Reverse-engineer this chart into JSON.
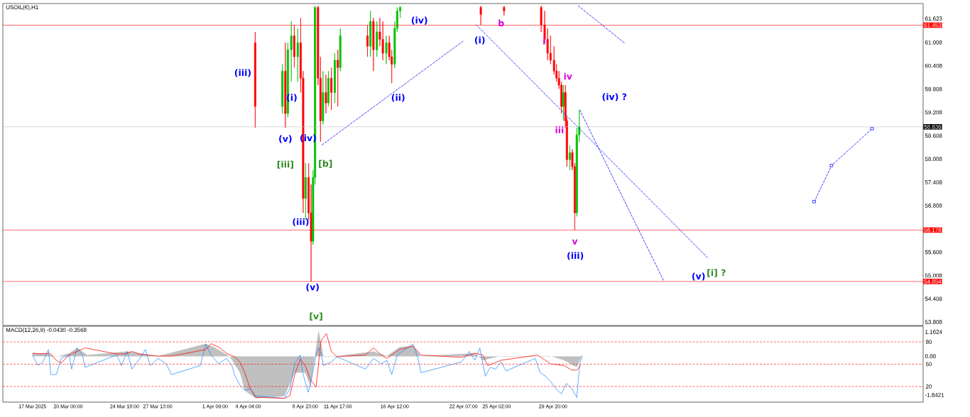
{
  "chart_data": [
    {
      "type": "candlestick",
      "title": "USOIL(€),H1",
      "x": [
        "2025-04-04T18:00",
        "2025-04-07T01:00",
        "2025-04-07T07:00",
        "2025-04-07T12:00",
        "2025-04-07T19:00",
        "2025-04-08T01:00",
        "2025-04-08T08:00",
        "2025-04-08T14:00",
        "2025-04-08T19:00",
        "2025-04-09T00:00",
        "2025-04-09T06:00",
        "2025-04-09T11:00",
        "2025-04-09T15:00",
        "2025-04-09T19:00",
        "2025-04-10T01:00",
        "2025-04-10T06:00",
        "2025-04-10T11:00",
        "2025-04-10T17:00",
        "2025-04-10T22:00",
        "2025-04-11T04:00",
        "2025-04-11T11:00",
        "2025-04-11T17:00",
        "2025-04-11T22:00",
        "2025-04-14T05:00",
        "2025-04-14T11:00",
        "2025-04-14T17:00",
        "2025-04-15T00:00",
        "2025-04-15T06:00",
        "2025-04-15T12:00",
        "2025-04-15T19:00",
        "2025-04-16T01:00",
        "2025-04-16T06:00",
        "2025-04-16T12:00",
        "2025-04-16T17:00",
        "2025-04-16T23:00",
        "2025-04-23T18:00",
        "2025-04-25T17:00",
        "2025-04-28T20:00",
        "2025-04-29T03:00",
        "2025-04-29T09:00",
        "2025-04-29T15:00",
        "2025-04-29T22:00",
        "2025-04-30T03:00",
        "2025-04-30T08:00",
        "2025-04-30T13:00",
        "2025-04-30T17:00",
        "2025-04-30T21:00",
        "2025-05-01T00:00",
        "2025-05-01T06:00",
        "2025-05-01T11:00",
        "2025-05-01T16:00",
        "2025-05-01T20:00",
        "2025-05-02T01:00"
      ],
      "ohlc": [
        [
          61.0,
          61.28,
          58.81,
          59.36
        ],
        [
          59.36,
          60.45,
          59.18,
          60.27
        ],
        [
          60.27,
          61.0,
          58.81,
          59.18
        ],
        [
          59.18,
          61.0,
          59.08,
          60.82
        ],
        [
          60.82,
          61.55,
          60.0,
          61.18
        ],
        [
          61.18,
          61.46,
          60.36,
          60.64
        ],
        [
          60.64,
          61.37,
          60.0,
          61.0
        ],
        [
          61.0,
          61.64,
          59.72,
          60.09
        ],
        [
          60.09,
          60.27,
          56.62,
          56.99
        ],
        [
          56.99,
          57.9,
          56.44,
          57.53
        ],
        [
          57.53,
          57.9,
          56.44,
          56.62
        ],
        [
          56.62,
          57.35,
          54.85,
          55.89
        ],
        [
          55.89,
          57.72,
          55.8,
          57.53
        ],
        [
          57.53,
          61.95,
          57.35,
          61.91
        ],
        [
          61.91,
          61.95,
          59.91,
          60.09
        ],
        [
          60.09,
          60.64,
          58.45,
          58.99
        ],
        [
          58.99,
          60.27,
          58.9,
          59.72
        ],
        [
          59.72,
          60.18,
          59.18,
          59.45
        ],
        [
          59.45,
          60.27,
          59.36,
          60.09
        ],
        [
          60.09,
          60.36,
          59.27,
          59.72
        ],
        [
          59.72,
          60.73,
          59.45,
          60.55
        ],
        [
          60.55,
          60.82,
          59.36,
          60.36
        ],
        [
          60.36,
          61.37,
          60.27,
          61.18
        ],
        [
          61.18,
          61.46,
          60.64,
          60.91
        ],
        [
          60.91,
          61.82,
          60.64,
          61.55
        ],
        [
          61.55,
          61.64,
          60.27,
          60.82
        ],
        [
          60.82,
          61.55,
          60.64,
          61.28
        ],
        [
          61.28,
          61.64,
          60.91,
          61.09
        ],
        [
          61.09,
          61.55,
          60.55,
          60.73
        ],
        [
          60.73,
          61.18,
          60.45,
          61.0
        ],
        [
          61.0,
          61.18,
          60.55,
          60.64
        ],
        [
          60.64,
          60.82,
          59.96,
          60.45
        ],
        [
          60.45,
          61.55,
          60.36,
          61.37
        ],
        [
          61.37,
          61.91,
          61.28,
          61.82
        ],
        [
          61.82,
          61.95,
          61.64,
          61.91
        ],
        [
          61.91,
          61.95,
          61.46,
          61.73
        ],
        [
          61.91,
          61.95,
          61.7,
          61.82
        ],
        [
          61.91,
          61.95,
          61.28,
          61.46
        ],
        [
          61.46,
          61.82,
          61.0,
          61.09
        ],
        [
          61.09,
          61.37,
          60.55,
          60.73
        ],
        [
          60.73,
          61.18,
          60.45,
          60.55
        ],
        [
          60.55,
          60.91,
          60.18,
          60.27
        ],
        [
          60.27,
          60.45,
          60.0,
          60.09
        ],
        [
          60.09,
          60.27,
          59.81,
          59.91
        ],
        [
          59.91,
          60.0,
          59.18,
          59.36
        ],
        [
          59.36,
          59.91,
          58.99,
          59.72
        ],
        [
          59.72,
          59.91,
          58.81,
          58.99
        ],
        [
          58.99,
          59.08,
          57.81,
          57.99
        ],
        [
          57.99,
          58.35,
          57.72,
          58.17
        ],
        [
          58.17,
          58.26,
          57.72,
          57.81
        ],
        [
          57.81,
          57.9,
          56.18,
          56.62
        ],
        [
          56.62,
          58.81,
          56.53,
          58.63
        ],
        [
          58.63,
          59.27,
          58.45,
          58.84
        ]
      ],
      "series": [
        {
          "type": "line",
          "color": "#0000ff",
          "line_style": "dashed",
          "x": [
            "2025-04-10T09:00",
            "2025-04-22T06:00"
          ],
          "values": [
            58.37,
            61.04
          ]
        },
        {
          "type": "line",
          "color": "#0000ff",
          "line_style": "dashed",
          "x": [
            "2025-04-23T09:00",
            "2025-05-12T20:00"
          ],
          "values": [
            61.46,
            55.47
          ]
        },
        {
          "type": "line",
          "color": "#0000ff",
          "line_style": "dashed",
          "x": [
            "2025-05-01T23:00",
            "2025-05-05T20:00"
          ],
          "values": [
            61.95,
            61.0
          ]
        },
        {
          "type": "line",
          "color": "#0000ff",
          "line_style": "dashed",
          "x": [
            "2025-05-02T02:00",
            "2025-05-09T03:00"
          ],
          "values": [
            59.27,
            54.89
          ]
        },
        {
          "type": "line",
          "color": "#0000ff",
          "line_style": "dashed",
          "marker": "square",
          "x": [
            "2025-05-21T20:00",
            "2025-05-23T07:00",
            "2025-05-26T17:00"
          ],
          "values": [
            56.91,
            57.84,
            58.79
          ]
        }
      ],
      "xlim": [
        "2025-03-14T12:00",
        "2025-05-31T00:00"
      ],
      "ylim": [
        53.72,
        62.01
      ],
      "tick_labels": "y",
      "yticks": [
        61.623,
        61.008,
        60.408,
        59.808,
        59.208,
        58.608,
        58.008,
        57.408,
        56.808,
        55.608,
        55.008,
        54.408,
        53.808
      ],
      "ref_lines": [
        {
          "axis": "y",
          "value": 61.453,
          "label": "61.453",
          "color": "#ff0000"
        },
        {
          "axis": "y",
          "value": 58.836,
          "label": "58.836",
          "color": "#c0c0c0"
        },
        {
          "axis": "y",
          "value": 56.178,
          "label": "56.178",
          "color": "#ff0000"
        },
        {
          "axis": "y",
          "value": 54.854,
          "label": "54.854",
          "color": "#ff0000"
        }
      ],
      "annotations": [
        "(iii)",
        "(i)",
        "(v)",
        "(iv)",
        "[iii]",
        "[b]",
        "(iii)",
        "(v)",
        "[v]",
        "(ii)",
        "(iv)",
        "(i)",
        "b",
        "i",
        "iv",
        "(iv) ?",
        "iii",
        "v",
        "(iii)",
        "(v)",
        "[i] ?"
      ]
    },
    {
      "type": "line",
      "title": "MACD(12,26,9) -0.0430 -0.3568",
      "xlim": [
        "2025-03-14T12:00",
        "2025-05-31T00:00"
      ],
      "ylim": [
        -2.18,
        1.43
      ],
      "y2lim": [
        -1,
        101
      ],
      "xticks": [
        {
          "value": "2025-03-17T00:00",
          "label": "17 Mar 2025"
        },
        {
          "value": "2025-03-20T00:00",
          "label": "20 Mar 00:00"
        },
        {
          "value": "2025-03-24T18:00",
          "label": "24 Mar 18:00"
        },
        {
          "value": "2025-03-27T13:00",
          "label": "27 Mar 13:00"
        },
        {
          "value": "2025-04-01T09:00",
          "label": "1 Apr 09:00"
        },
        {
          "value": "2025-04-04T04:00",
          "label": "4 Apr 04:00"
        },
        {
          "value": "2025-04-08T23:00",
          "label": "8 Apr 23:00"
        },
        {
          "value": "2025-04-11T17:00",
          "label": "11 Apr 17:00"
        },
        {
          "value": "2025-04-16T12:00",
          "label": "16 Apr 12:00"
        },
        {
          "value": "2025-04-22T07:00",
          "label": "22 Apr 07:00"
        },
        {
          "value": "2025-04-25T02:00",
          "label": "25 Apr 02:00"
        },
        {
          "value": "2025-04-29T20:00",
          "label": "29 Apr 20:00"
        }
      ],
      "yticks": [
        1.1624,
        {
          "value": 0,
          "label": "0.00"
        },
        -1.8421
      ],
      "y2ticks": [
        80,
        50,
        20
      ],
      "ref_lines": [
        {
          "axis": "y2",
          "value": 80,
          "color": "#ff0000",
          "line_style": "dashed"
        },
        {
          "axis": "y2",
          "value": 50,
          "color": "#ff0000",
          "line_style": "dashed"
        },
        {
          "axis": "y2",
          "value": 20,
          "color": "#ff0000",
          "line_style": "dashed"
        }
      ],
      "series": [
        {
          "type": "area",
          "color": "#c0c0c0",
          "x": [
            "2025-03-17T00:00",
            "2025-03-18T03:00",
            "2025-03-19T00:00",
            "2025-03-20T02:00",
            "2025-03-20T18:00",
            "2025-03-21T15:00",
            "2025-03-24T23:00",
            "2025-03-27T14:00",
            "2025-03-31T14:00",
            "2025-04-01T06:00",
            "2025-04-02T14:00",
            "2025-04-03T11:00",
            "2025-04-03T21:00",
            "2025-04-04T19:00",
            "2025-04-07T05:00",
            "2025-04-08T02:00",
            "2025-04-08T23:00",
            "2025-04-09T10:00",
            "2025-04-10T02:00",
            "2025-04-10T12:00",
            "2025-04-11T15:00",
            "2025-04-14T17:00",
            "2025-04-15T20:00",
            "2025-04-16T22:00",
            "2025-04-18T01:00",
            "2025-04-18T17:00",
            "2025-04-23T06:00",
            "2025-04-23T22:00",
            "2025-04-25T11:00",
            "2025-04-29T15:00",
            "2025-04-30T18:00",
            "2025-05-01T20:00",
            "2025-05-02T07:00"
          ],
          "values": [
            0.15,
            0.15,
            -0.02,
            0.15,
            0.4,
            0.06,
            0.23,
            0.01,
            0.6,
            0.44,
            0.01,
            -0.78,
            -1.63,
            -2.0,
            -1.9,
            -0.78,
            -0.78,
            -1.46,
            1.25,
            0.01,
            0.01,
            0.23,
            0.01,
            0.44,
            0.49,
            0.01,
            0.15,
            -0.19,
            0.01,
            0.01,
            -0.19,
            -0.53,
            0.06
          ]
        },
        {
          "type": "line",
          "color": "#1e90ff",
          "x": [
            "2025-03-17T00:00",
            "2025-03-17T11:00",
            "2025-03-17T21:00",
            "2025-03-18T08:00",
            "2025-03-18T13:00",
            "2025-03-19T00:00",
            "2025-03-19T10:00",
            "2025-03-20T02:00",
            "2025-03-20T07:00",
            "2025-03-20T18:00",
            "2025-03-21T05:00",
            "2025-03-21T10:00",
            "2025-03-24T02:00",
            "2025-03-24T12:00",
            "2025-03-24T23:00",
            "2025-03-25T09:00",
            "2025-03-26T01:00",
            "2025-03-26T12:00",
            "2025-03-26T22:00",
            "2025-03-27T14:00",
            "2025-03-28T06:00",
            "2025-03-28T17:00",
            "2025-03-31T03:00",
            "2025-03-31T14:00",
            "2025-04-01T01:00",
            "2025-04-01T16:00",
            "2025-04-02T08:00",
            "2025-04-02T19:00",
            "2025-04-03T00:00",
            "2025-04-03T11:00",
            "2025-04-03T21:00",
            "2025-04-04T08:00",
            "2025-04-04T19:00",
            "2025-04-07T05:00",
            "2025-04-07T16:00",
            "2025-04-08T02:00",
            "2025-04-08T13:00",
            "2025-04-08T18:00",
            "2025-04-09T05:00",
            "2025-04-09T10:00",
            "2025-04-09T21:00",
            "2025-04-10T02:00",
            "2025-04-10T07:00",
            "2025-04-10T12:00",
            "2025-04-11T04:00",
            "2025-04-11T15:00",
            "2025-04-14T01:00",
            "2025-04-14T17:00",
            "2025-04-15T09:00",
            "2025-04-15T20:00",
            "2025-04-16T06:00",
            "2025-04-16T17:00",
            "2025-04-17T14:00",
            "2025-04-18T01:00",
            "2025-04-18T11:00",
            "2025-04-18T17:00",
            "2025-04-22T03:00",
            "2025-04-22T19:00",
            "2025-04-23T06:00",
            "2025-04-23T16:00",
            "2025-04-24T03:00",
            "2025-04-24T13:00",
            "2025-04-25T00:00",
            "2025-04-25T11:00",
            "2025-04-25T21:00",
            "2025-04-28T08:00",
            "2025-04-28T18:00",
            "2025-04-29T05:00",
            "2025-04-29T15:00",
            "2025-04-30T02:00",
            "2025-04-30T13:00",
            "2025-04-30T23:00",
            "2025-05-01T10:00",
            "2025-05-01T20:00",
            "2025-05-02T02:00",
            "2025-05-02T07:00"
          ],
          "values": [
            0.06,
            -0.44,
            -0.27,
            0.32,
            -0.87,
            -0.87,
            -0.1,
            0.06,
            -0.61,
            0.4,
            0.06,
            -0.53,
            0.06,
            -0.44,
            0.23,
            -0.61,
            -0.1,
            0.32,
            -0.44,
            -0.1,
            -0.36,
            -0.87,
            -0.44,
            0.57,
            0.06,
            -0.36,
            -0.1,
            -0.44,
            -0.87,
            -1.37,
            -1.63,
            -1.54,
            -1.88,
            -2.0,
            -1.54,
            -0.36,
            0.06,
            -0.78,
            -1.71,
            -1.29,
            0.06,
            0.4,
            0.15,
            -0.44,
            -0.27,
            -0.02,
            -0.61,
            -0.1,
            -0.36,
            -0.19,
            -0.87,
            0.06,
            0.4,
            0.57,
            -0.1,
            -0.78,
            -0.27,
            0.23,
            -0.19,
            0.4,
            -0.95,
            -0.53,
            -0.61,
            -0.27,
            -0.7,
            -0.1,
            -0.78,
            -0.95,
            -1.2,
            -1.54,
            -1.79,
            -1.29,
            -1.54,
            -1.96,
            -0.36,
            0.01
          ]
        },
        {
          "type": "line",
          "color": "#ff0000",
          "x": [
            "2025-03-17T00:00",
            "2025-03-17T16:00",
            "2025-03-18T11:00",
            "2025-03-19T00:00",
            "2025-03-19T10:00",
            "2025-03-20T02:00",
            "2025-03-20T18:00",
            "2025-03-21T10:00",
            "2025-03-24T02:00",
            "2025-03-24T18:00",
            "2025-03-25T09:00",
            "2025-03-26T01:00",
            "2025-03-26T17:00",
            "2025-03-27T14:00",
            "2025-03-28T17:00",
            "2025-03-31T14:00",
            "2025-04-01T01:00",
            "2025-04-01T16:00",
            "2025-04-02T08:00",
            "2025-04-03T00:00",
            "2025-04-03T11:00",
            "2025-04-03T21:00",
            "2025-04-04T08:00",
            "2025-04-04T19:00",
            "2025-04-07T05:00",
            "2025-04-07T16:00",
            "2025-04-08T02:00",
            "2025-04-08T13:00",
            "2025-04-08T23:00",
            "2025-04-09T10:00",
            "2025-04-09T21:00",
            "2025-04-10T07:00",
            "2025-04-10T18:00",
            "2025-04-11T04:00",
            "2025-04-11T15:00",
            "2025-04-14T01:00",
            "2025-04-14T17:00",
            "2025-04-15T09:00",
            "2025-04-15T20:00",
            "2025-04-16T22:00",
            "2025-04-18T01:00",
            "2025-04-18T17:00",
            "2025-04-22T03:00",
            "2025-04-23T06:00",
            "2025-04-23T22:00",
            "2025-04-24T08:00",
            "2025-04-25T11:00",
            "2025-04-28T13:00",
            "2025-04-29T15:00",
            "2025-04-30T18:00",
            "2025-05-01T10:00",
            "2025-05-01T20:00",
            "2025-05-02T04:00"
          ],
          "values": [
            0.15,
            0.11,
            0.15,
            -0.19,
            -0.32,
            0.06,
            0.23,
            0.4,
            0.11,
            0.11,
            0.23,
            0.1,
            0.06,
            0.01,
            0.01,
            0.32,
            0.6,
            0.44,
            0.15,
            -0.02,
            -0.27,
            -0.78,
            -1.54,
            -1.95,
            -2.0,
            -1.88,
            -0.87,
            -0.14,
            -0.44,
            -1.12,
            -1.46,
            0.74,
            1.08,
            0.23,
            -0.02,
            0.06,
            0.4,
            0.06,
            -0.1,
            0.32,
            0.49,
            0.06,
            -0.05,
            0.15,
            0.06,
            -0.44,
            -0.19,
            0.06,
            -0.36,
            -0.44,
            -0.66,
            -0.66,
            -0.44
          ]
        }
      ]
    }
  ]
}
